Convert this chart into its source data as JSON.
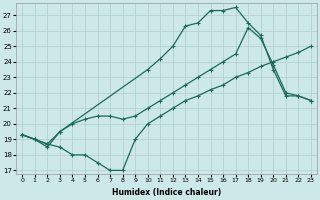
{
  "xlabel": "Humidex (Indice chaleur)",
  "bg_color": "#cce8e8",
  "grid_color": "#b0cccc",
  "line_color": "#1a6b5a",
  "xlim": [
    -0.5,
    23.5
  ],
  "ylim": [
    16.8,
    27.8
  ],
  "xticks": [
    0,
    1,
    2,
    3,
    4,
    5,
    6,
    7,
    8,
    9,
    10,
    11,
    12,
    13,
    14,
    15,
    16,
    17,
    18,
    19,
    20,
    21,
    22,
    23
  ],
  "yticks": [
    17,
    18,
    19,
    20,
    21,
    22,
    23,
    24,
    25,
    26,
    27
  ],
  "line1_x": [
    0,
    1,
    2,
    3,
    4,
    5,
    6,
    7,
    8,
    9,
    10,
    11,
    12,
    13,
    14,
    15,
    16,
    17,
    18,
    19,
    20,
    21,
    22,
    23
  ],
  "line1_y": [
    19.3,
    19.0,
    18.7,
    18.5,
    18.0,
    18.0,
    17.5,
    17.0,
    17.0,
    19.0,
    20.0,
    20.5,
    21.0,
    21.5,
    21.8,
    22.2,
    22.5,
    23.0,
    23.3,
    23.7,
    24.0,
    24.3,
    24.6,
    25.0
  ],
  "line2_x": [
    0,
    1,
    2,
    3,
    4,
    5,
    6,
    7,
    8,
    9,
    10,
    11,
    12,
    13,
    14,
    15,
    16,
    17,
    18,
    19,
    20,
    21,
    22,
    23
  ],
  "line2_y": [
    19.3,
    19.0,
    18.7,
    19.5,
    20.0,
    20.3,
    20.5,
    20.5,
    20.3,
    20.5,
    21.0,
    21.5,
    22.0,
    22.5,
    23.0,
    23.5,
    24.0,
    24.5,
    26.2,
    25.5,
    23.8,
    22.0,
    21.8,
    21.5
  ],
  "line3_x": [
    0,
    1,
    2,
    3,
    10,
    11,
    12,
    13,
    14,
    15,
    16,
    17,
    18,
    19,
    20,
    21,
    22,
    23
  ],
  "line3_y": [
    19.3,
    19.0,
    18.5,
    19.5,
    23.5,
    24.2,
    25.0,
    26.3,
    26.5,
    27.3,
    27.3,
    27.5,
    26.5,
    25.7,
    23.5,
    21.8,
    21.8,
    21.5
  ]
}
